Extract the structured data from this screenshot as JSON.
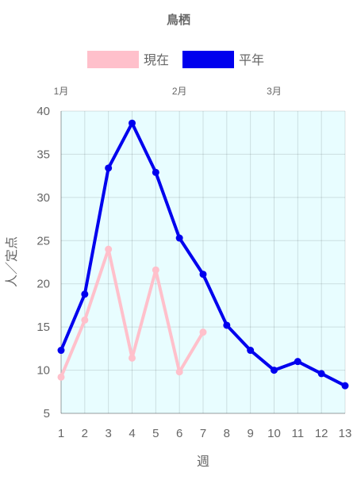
{
  "chart_data": {
    "type": "line",
    "title": "鳥栖",
    "xlabel": "週",
    "ylabel": "人／定点",
    "x": [
      1,
      2,
      3,
      4,
      5,
      6,
      7,
      8,
      9,
      10,
      11,
      12,
      13
    ],
    "ylim": [
      5,
      40
    ],
    "yticks": [
      5,
      10,
      15,
      20,
      25,
      30,
      35,
      40
    ],
    "month_labels": [
      {
        "label": "1月",
        "week": 1
      },
      {
        "label": "2月",
        "week": 6
      },
      {
        "label": "3月",
        "week": 10
      }
    ],
    "grid": true,
    "legend_position": "top",
    "plot_background": "#e8fdff",
    "series": [
      {
        "name": "現在",
        "color": "#ffc0cb",
        "values": [
          9.2,
          15.8,
          24.0,
          11.4,
          21.6,
          9.8,
          14.4,
          null,
          null,
          null,
          null,
          null,
          null
        ]
      },
      {
        "name": "平年",
        "color": "#0000ee",
        "values": [
          12.3,
          18.8,
          33.4,
          38.6,
          32.9,
          25.3,
          21.1,
          15.2,
          12.3,
          10.0,
          11.0,
          9.6,
          8.2
        ]
      }
    ]
  }
}
